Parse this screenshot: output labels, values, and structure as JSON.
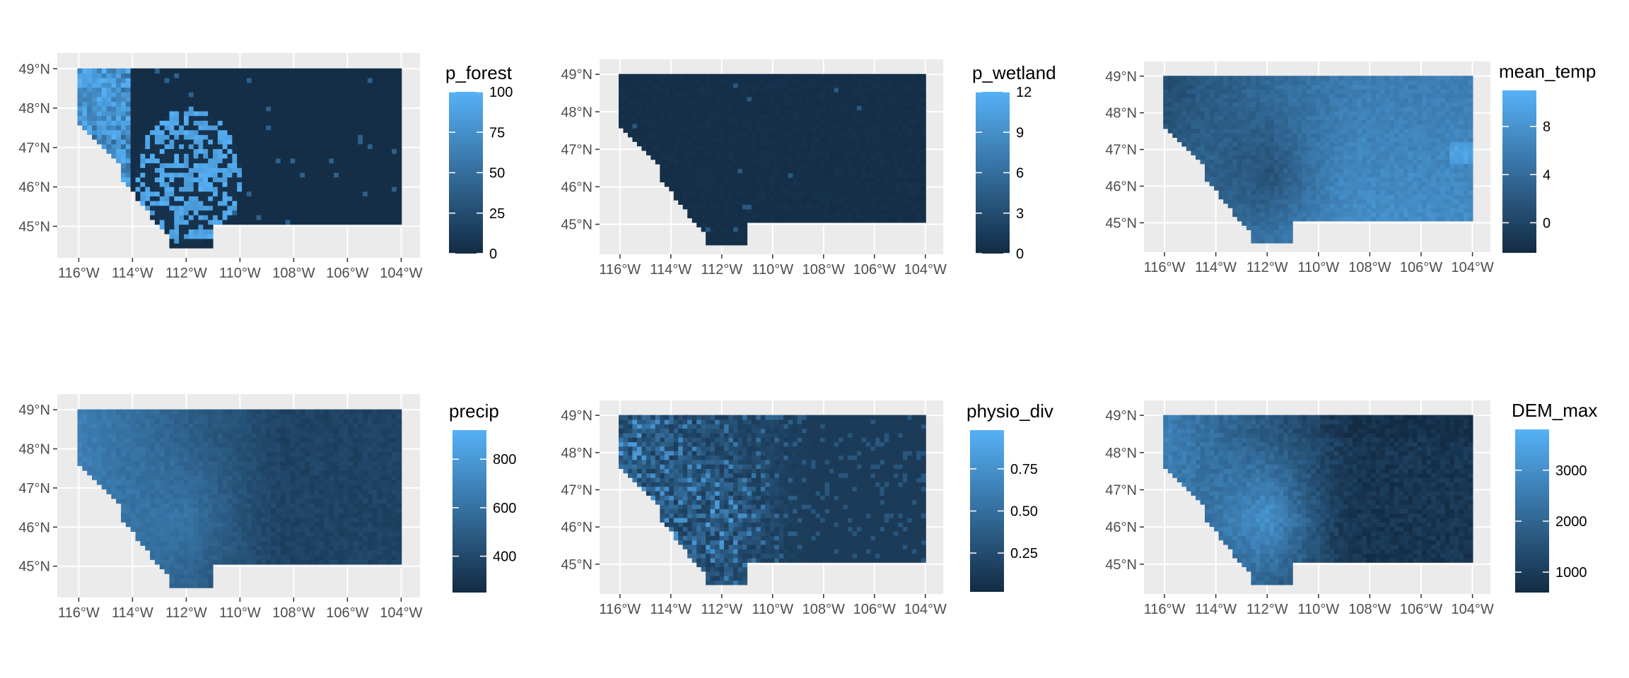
{
  "chart_data": [
    {
      "type": "heatmap",
      "variable": "p_forest",
      "legend": {
        "title": "p_forest",
        "ticks": [
          0,
          25,
          50,
          75,
          100
        ],
        "range": [
          0,
          100
        ]
      },
      "x_ticks": [
        "116°W",
        "114°W",
        "112°W",
        "110°W",
        "108°W",
        "106°W",
        "104°W"
      ],
      "y_ticks": [
        "45°N",
        "46°N",
        "47°N",
        "48°N",
        "49°N"
      ],
      "color_low": "#132b43",
      "color_high": "#56b1f7"
    },
    {
      "type": "heatmap",
      "variable": "p_wetland",
      "legend": {
        "title": "p_wetland",
        "ticks": [
          0,
          3,
          6,
          9,
          12
        ],
        "range": [
          0,
          12
        ]
      },
      "x_ticks": [
        "116°W",
        "114°W",
        "112°W",
        "110°W",
        "108°W",
        "106°W",
        "104°W"
      ],
      "y_ticks": [
        "45°N",
        "46°N",
        "47°N",
        "48°N",
        "49°N"
      ],
      "color_low": "#132b43",
      "color_high": "#56b1f7"
    },
    {
      "type": "heatmap",
      "variable": "mean_temp",
      "legend": {
        "title": "mean_temp",
        "ticks": [
          0,
          4,
          8
        ],
        "range": [
          -2.5,
          11
        ]
      },
      "x_ticks": [
        "116°W",
        "114°W",
        "112°W",
        "110°W",
        "108°W",
        "106°W",
        "104°W"
      ],
      "y_ticks": [
        "45°N",
        "46°N",
        "47°N",
        "48°N",
        "49°N"
      ],
      "color_low": "#132b43",
      "color_high": "#56b1f7"
    },
    {
      "type": "heatmap",
      "variable": "precip",
      "legend": {
        "title": "precip",
        "ticks": [
          400,
          600,
          800
        ],
        "range": [
          250,
          920
        ]
      },
      "x_ticks": [
        "116°W",
        "114°W",
        "112°W",
        "110°W",
        "108°W",
        "106°W",
        "104°W"
      ],
      "y_ticks": [
        "45°N",
        "46°N",
        "47°N",
        "48°N",
        "49°N"
      ],
      "color_low": "#132b43",
      "color_high": "#56b1f7"
    },
    {
      "type": "heatmap",
      "variable": "physio_div",
      "legend": {
        "title": "physio_div",
        "ticks": [
          0.25,
          0.5,
          0.75
        ],
        "tick_labels": [
          "0.25",
          "0.50",
          "0.75"
        ],
        "range": [
          0.02,
          0.98
        ]
      },
      "x_ticks": [
        "116°W",
        "114°W",
        "112°W",
        "110°W",
        "108°W",
        "106°W",
        "104°W"
      ],
      "y_ticks": [
        "45°N",
        "46°N",
        "47°N",
        "48°N",
        "49°N"
      ],
      "color_low": "#132b43",
      "color_high": "#56b1f7"
    },
    {
      "type": "heatmap",
      "variable": "DEM_max",
      "legend": {
        "title": "DEM_max",
        "ticks": [
          1000,
          2000,
          3000
        ],
        "range": [
          600,
          3800
        ]
      },
      "x_ticks": [
        "116°W",
        "114°W",
        "112°W",
        "110°W",
        "108°W",
        "106°W",
        "104°W"
      ],
      "y_ticks": [
        "45°N",
        "46°N",
        "47°N",
        "48°N",
        "49°N"
      ],
      "color_low": "#132b43",
      "color_high": "#56b1f7"
    }
  ]
}
